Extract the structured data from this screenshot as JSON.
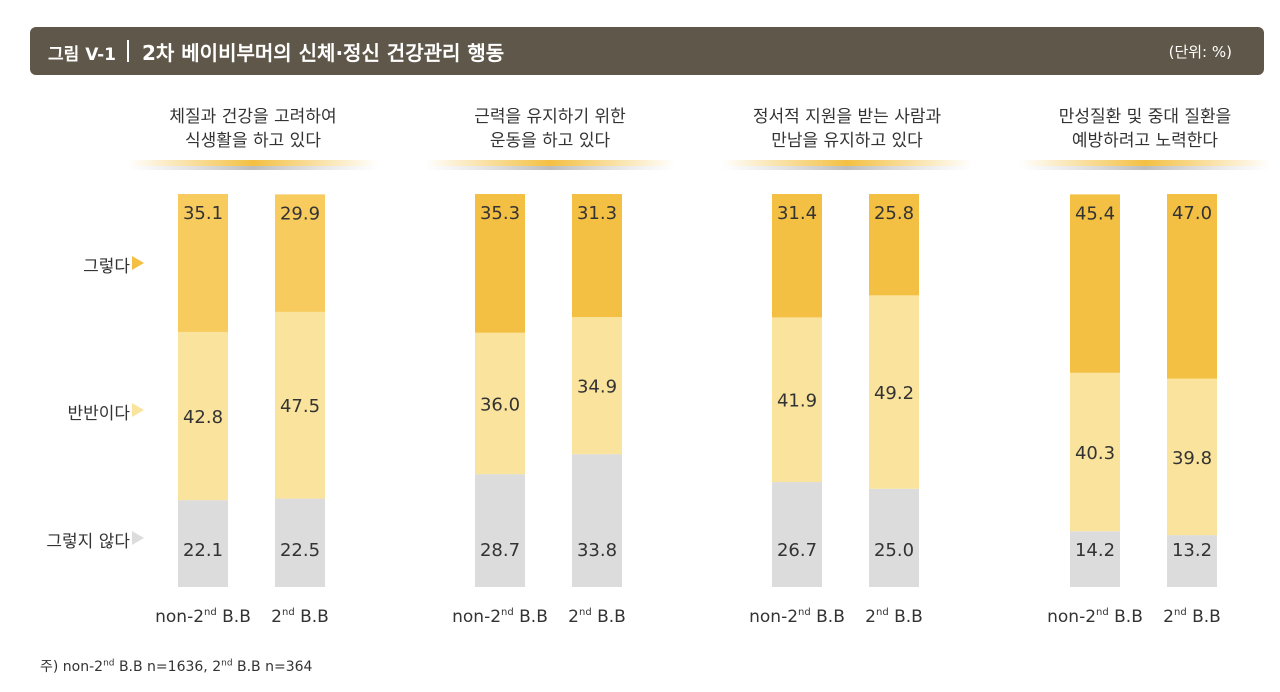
{
  "figure": {
    "label": "그림 V-1",
    "title": "2차 베이비부머의 신체·정신 건강관리 행동",
    "unit": "(단위: %)"
  },
  "colors": {
    "agree": "#f3c043",
    "agree_light": "#f7cb5d",
    "neutral": "#fae39c",
    "disagree": "#dcdcdc",
    "title_bg": "#5f5749",
    "arrow_neutral": "#fae39c",
    "arrow_disagree": "#dcdcdc"
  },
  "row_labels": {
    "agree": "그렇다",
    "neutral": "반반이다",
    "disagree": "그렇지 않다"
  },
  "chart_data": {
    "type": "bar",
    "stacked": true,
    "ylim": [
      0,
      100
    ],
    "series_order": [
      "그렇지 않다",
      "반반이다",
      "그렇다"
    ],
    "panels": [
      {
        "title_lines": [
          "체질과 건강을 고려하여",
          "식생활을 하고 있다"
        ],
        "categories": [
          {
            "base": "non-2",
            "sup": "nd",
            "rest": " B.B"
          },
          {
            "base": "2",
            "sup": "nd",
            "rest": " B.B"
          }
        ],
        "series": [
          {
            "name": "그렇지 않다",
            "values": [
              22.1,
              22.5
            ]
          },
          {
            "name": "반반이다",
            "values": [
              42.8,
              47.5
            ]
          },
          {
            "name": "그렇다",
            "values": [
              35.1,
              29.9
            ]
          }
        ]
      },
      {
        "title_lines": [
          "근력을 유지하기 위한",
          "운동을 하고 있다"
        ],
        "categories": [
          {
            "base": "non-2",
            "sup": "nd",
            "rest": " B.B"
          },
          {
            "base": "2",
            "sup": "nd",
            "rest": " B.B"
          }
        ],
        "series": [
          {
            "name": "그렇지 않다",
            "values": [
              28.7,
              33.8
            ]
          },
          {
            "name": "반반이다",
            "values": [
              36.0,
              34.9
            ]
          },
          {
            "name": "그렇다",
            "values": [
              35.3,
              31.3
            ]
          }
        ]
      },
      {
        "title_lines": [
          "정서적 지원을 받는 사람과",
          "만남을 유지하고 있다"
        ],
        "categories": [
          {
            "base": "non-2",
            "sup": "nd",
            "rest": " B.B"
          },
          {
            "base": "2",
            "sup": "nd",
            "rest": " B.B"
          }
        ],
        "series": [
          {
            "name": "그렇지 않다",
            "values": [
              26.7,
              25.0
            ]
          },
          {
            "name": "반반이다",
            "values": [
              41.9,
              49.2
            ]
          },
          {
            "name": "그렇다",
            "values": [
              31.4,
              25.8
            ]
          }
        ]
      },
      {
        "title_lines": [
          "만성질환 및 중대 질환을",
          "예방하려고 노력한다"
        ],
        "categories": [
          {
            "base": "non-2",
            "sup": "nd",
            "rest": " B.B"
          },
          {
            "base": "2",
            "sup": "nd",
            "rest": " B.B"
          }
        ],
        "series": [
          {
            "name": "그렇지 않다",
            "values": [
              14.2,
              13.2
            ]
          },
          {
            "name": "반반이다",
            "values": [
              40.3,
              39.8
            ]
          },
          {
            "name": "그렇다",
            "values": [
              45.4,
              47.0
            ]
          }
        ]
      }
    ]
  },
  "note": {
    "prefix": "주) non-2",
    "sup1": "nd",
    "mid": " B.B n=1636, 2",
    "sup2": "nd",
    "suffix": " B.B n=364"
  }
}
